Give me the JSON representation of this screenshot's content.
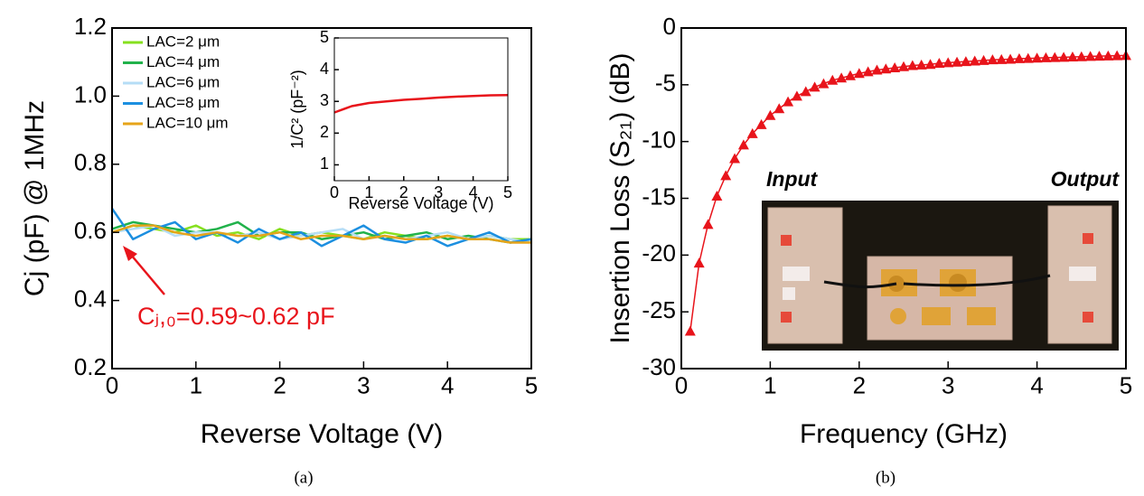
{
  "chart_data": [
    {
      "type": "line",
      "xlabel": "Reverse Voltage (V)",
      "ylabel": "Cj (pF) @ 1MHz",
      "caption": "(a)",
      "x": [
        0,
        0.25,
        0.5,
        0.75,
        1,
        1.25,
        1.5,
        1.75,
        2,
        2.25,
        2.5,
        2.75,
        3,
        3.25,
        3.5,
        3.75,
        4,
        4.25,
        4.5,
        4.75,
        5
      ],
      "series": [
        {
          "name": "LAC=2 μm",
          "color": "#86e01e",
          "values": [
            0.6,
            0.62,
            0.61,
            0.6,
            0.62,
            0.59,
            0.6,
            0.58,
            0.61,
            0.59,
            0.6,
            0.59,
            0.58,
            0.6,
            0.59,
            0.58,
            0.59,
            0.58,
            0.59,
            0.58,
            0.58
          ]
        },
        {
          "name": "LAC=4 μm",
          "color": "#21b24b",
          "values": [
            0.61,
            0.63,
            0.62,
            0.61,
            0.6,
            0.61,
            0.63,
            0.59,
            0.6,
            0.6,
            0.58,
            0.59,
            0.6,
            0.58,
            0.59,
            0.6,
            0.58,
            0.59,
            0.58,
            0.57,
            0.58
          ]
        },
        {
          "name": "LAC=6 μm",
          "color": "#b5ddf6",
          "values": [
            0.6,
            0.61,
            0.62,
            0.59,
            0.6,
            0.6,
            0.59,
            0.6,
            0.58,
            0.59,
            0.6,
            0.61,
            0.58,
            0.59,
            0.58,
            0.59,
            0.6,
            0.58,
            0.59,
            0.58,
            0.57
          ]
        },
        {
          "name": "LAC=8 μm",
          "color": "#1c8fe0",
          "values": [
            0.67,
            0.58,
            0.61,
            0.63,
            0.58,
            0.6,
            0.57,
            0.61,
            0.58,
            0.6,
            0.56,
            0.59,
            0.62,
            0.58,
            0.57,
            0.59,
            0.56,
            0.58,
            0.6,
            0.57,
            0.58
          ]
        },
        {
          "name": "LAC=10 μm",
          "color": "#e6a41a",
          "values": [
            0.6,
            0.62,
            0.62,
            0.6,
            0.59,
            0.6,
            0.59,
            0.59,
            0.6,
            0.58,
            0.59,
            0.59,
            0.58,
            0.59,
            0.58,
            0.58,
            0.59,
            0.58,
            0.58,
            0.57,
            0.57
          ]
        }
      ],
      "xlim": [
        0,
        5
      ],
      "xticks": [
        0,
        1,
        2,
        3,
        4,
        5
      ],
      "ylim": [
        0.2,
        1.2
      ],
      "yticks": [
        0.2,
        0.4,
        0.6,
        0.8,
        {
          "value": 1,
          "label": "1.0"
        },
        1.2
      ],
      "legend": "upper left",
      "annotation": "Cⱼ,₀=0.59~0.62 pF",
      "annotation_color": "#e8141b"
    },
    {
      "type": "line",
      "xlabel": "Reverse Voltage (V)",
      "ylabel": "1/C² (pF⁻²)",
      "x": [
        0,
        0.5,
        1,
        1.5,
        2,
        2.5,
        3,
        3.5,
        4,
        4.5,
        5
      ],
      "series": [
        {
          "color": "#e8141b",
          "values": [
            2.65,
            2.85,
            2.95,
            3.0,
            3.05,
            3.08,
            3.12,
            3.15,
            3.17,
            3.19,
            3.2
          ]
        }
      ],
      "xlim": [
        0,
        5
      ],
      "xticks": [
        0,
        1,
        2,
        3,
        4,
        5
      ],
      "ylim": [
        0.5,
        5
      ],
      "yticks": [
        1,
        2,
        3,
        4,
        5
      ]
    },
    {
      "type": "line",
      "xlabel": "Frequency (GHz)",
      "ylabel": "Insertion Loss (S₂₁) (dB)",
      "caption": "(b)",
      "x": [
        0.1,
        0.2,
        0.3,
        0.4,
        0.5,
        0.6,
        0.7,
        0.8,
        0.9,
        1,
        1.1,
        1.2,
        1.3,
        1.4,
        1.5,
        1.6,
        1.7,
        1.8,
        1.9,
        2,
        2.1,
        2.2,
        2.3,
        2.4,
        2.5,
        2.6,
        2.7,
        2.8,
        2.9,
        3,
        3.1,
        3.2,
        3.3,
        3.4,
        3.5,
        3.6,
        3.7,
        3.8,
        3.9,
        4,
        4.1,
        4.2,
        4.3,
        4.4,
        4.5,
        4.6,
        4.7,
        4.8,
        4.9,
        5
      ],
      "series": [
        {
          "color": "#e8141b",
          "marker": "triangle",
          "values": [
            -26.7,
            -20.7,
            -17.3,
            -14.8,
            -13,
            -11.5,
            -10.3,
            -9.3,
            -8.5,
            -7.7,
            -7.1,
            -6.5,
            -6.0,
            -5.6,
            -5.2,
            -4.9,
            -4.6,
            -4.4,
            -4.2,
            -4.0,
            -3.85,
            -3.7,
            -3.6,
            -3.5,
            -3.4,
            -3.3,
            -3.25,
            -3.2,
            -3.1,
            -3.05,
            -3.0,
            -2.95,
            -2.9,
            -2.85,
            -2.8,
            -2.78,
            -2.75,
            -2.7,
            -2.68,
            -2.65,
            -2.62,
            -2.6,
            -2.58,
            -2.55,
            -2.53,
            -2.5,
            -2.48,
            -2.46,
            -2.44,
            -2.42
          ]
        }
      ],
      "xlim": [
        0,
        5
      ],
      "xticks": [
        0,
        1,
        2,
        3,
        4,
        5
      ],
      "ylim": [
        -30,
        0
      ],
      "yticks": [
        -30,
        -25,
        -20,
        -15,
        -10,
        -5,
        0
      ],
      "annotations": [
        "Input",
        "Output"
      ]
    }
  ]
}
